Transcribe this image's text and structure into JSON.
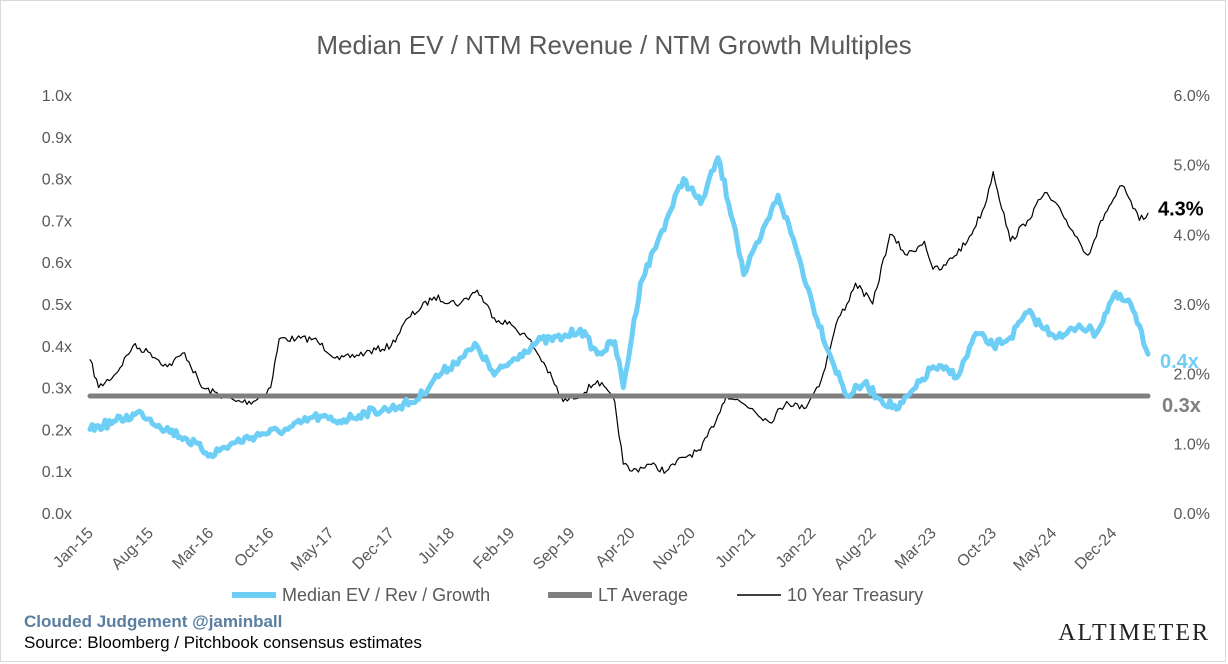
{
  "chart_data": {
    "type": "line",
    "title": "Median EV / NTM Revenue / NTM Growth Multiples",
    "x_tick_labels": [
      "Jan-15",
      "Aug-15",
      "Mar-16",
      "Oct-16",
      "May-17",
      "Dec-17",
      "Jul-18",
      "Feb-19",
      "Sep-19",
      "Apr-20",
      "Nov-20",
      "Jun-21",
      "Jan-22",
      "Aug-22",
      "Mar-23",
      "Oct-23",
      "May-24",
      "Dec-24"
    ],
    "y_left": {
      "ticks": [
        "0.0x",
        "0.1x",
        "0.2x",
        "0.3x",
        "0.4x",
        "0.5x",
        "0.6x",
        "0.7x",
        "0.8x",
        "0.9x",
        "1.0x"
      ],
      "range": [
        0,
        1.0
      ]
    },
    "y_right": {
      "ticks": [
        "0.0%",
        "1.0%",
        "2.0%",
        "3.0%",
        "4.0%",
        "5.0%",
        "6.0%"
      ],
      "range": [
        0,
        6.0
      ]
    },
    "series": [
      {
        "name": "Median EV / Rev / Growth",
        "axis": "left",
        "color": "#6ecff6",
        "style": "thick",
        "x": [
          "Jan-15",
          "Apr-15",
          "Jul-15",
          "Sep-15",
          "Dec-15",
          "Mar-16",
          "Jun-16",
          "Sep-16",
          "Dec-16",
          "Mar-17",
          "Jun-17",
          "Sep-17",
          "Dec-17",
          "Mar-18",
          "May-18",
          "Aug-18",
          "Oct-18",
          "Dec-18",
          "Mar-19",
          "May-19",
          "Aug-19",
          "Oct-19",
          "Dec-19",
          "Feb-20",
          "Mar-20",
          "May-20",
          "Jul-20",
          "Aug-20",
          "Oct-20",
          "Dec-20",
          "Feb-21",
          "Apr-21",
          "May-21",
          "Jul-21",
          "Sep-21",
          "Nov-21",
          "Jan-22",
          "Mar-22",
          "May-22",
          "Jul-22",
          "Sep-22",
          "Nov-22",
          "Jan-23",
          "Mar-23",
          "Jun-23",
          "Aug-23",
          "Oct-23",
          "Dec-23",
          "Feb-24",
          "Apr-24",
          "Jun-24",
          "Aug-24",
          "Oct-24",
          "Dec-24",
          "Feb-25",
          "Apr-25"
        ],
        "values": [
          0.2,
          0.22,
          0.24,
          0.21,
          0.18,
          0.14,
          0.17,
          0.19,
          0.2,
          0.23,
          0.22,
          0.24,
          0.25,
          0.27,
          0.32,
          0.37,
          0.4,
          0.33,
          0.38,
          0.41,
          0.42,
          0.44,
          0.38,
          0.41,
          0.3,
          0.55,
          0.65,
          0.7,
          0.8,
          0.74,
          0.85,
          0.68,
          0.57,
          0.66,
          0.76,
          0.64,
          0.5,
          0.38,
          0.28,
          0.31,
          0.27,
          0.25,
          0.3,
          0.35,
          0.33,
          0.43,
          0.4,
          0.42,
          0.48,
          0.44,
          0.42,
          0.45,
          0.43,
          0.52,
          0.5,
          0.38
        ]
      },
      {
        "name": "LT Average",
        "axis": "left",
        "color": "#7f7f7f",
        "style": "thick-flat",
        "x": [
          "Jan-15",
          "Apr-25"
        ],
        "values": [
          0.28,
          0.28
        ]
      },
      {
        "name": "10 Year Treasury",
        "axis": "right",
        "color": "#000000",
        "style": "thin",
        "x": [
          "Jan-15",
          "Feb-15",
          "Apr-15",
          "Jun-15",
          "Aug-15",
          "Oct-15",
          "Dec-15",
          "Feb-16",
          "Jun-16",
          "Aug-16",
          "Oct-16",
          "Nov-16",
          "Jan-17",
          "Mar-17",
          "Jun-17",
          "Sep-17",
          "Dec-17",
          "Feb-18",
          "May-18",
          "Aug-18",
          "Oct-18",
          "Dec-18",
          "Feb-19",
          "Apr-19",
          "Jun-19",
          "Aug-19",
          "Oct-19",
          "Dec-19",
          "Feb-20",
          "Mar-20",
          "Apr-20",
          "Jun-20",
          "Aug-20",
          "Oct-20",
          "Dec-20",
          "Feb-21",
          "Mar-21",
          "Jun-21",
          "Aug-21",
          "Oct-21",
          "Dec-21",
          "Feb-22",
          "Apr-22",
          "May-22",
          "Jun-22",
          "Aug-22",
          "Oct-22",
          "Dec-22",
          "Feb-23",
          "Mar-23",
          "Apr-23",
          "Jul-23",
          "Sep-23",
          "Oct-23",
          "Dec-23",
          "Feb-24",
          "Apr-24",
          "Jun-24",
          "Aug-24",
          "Sep-24",
          "Nov-24",
          "Jan-25",
          "Mar-25",
          "Apr-25"
        ],
        "values": [
          2.2,
          1.8,
          2.0,
          2.4,
          2.3,
          2.1,
          2.3,
          1.8,
          1.6,
          1.6,
          1.8,
          2.5,
          2.5,
          2.5,
          2.2,
          2.3,
          2.4,
          2.8,
          3.1,
          3.0,
          3.2,
          2.8,
          2.7,
          2.5,
          2.1,
          1.6,
          1.7,
          1.9,
          1.6,
          0.7,
          0.6,
          0.7,
          0.6,
          0.8,
          0.9,
          1.4,
          1.7,
          1.5,
          1.3,
          1.6,
          1.5,
          1.9,
          2.8,
          3.0,
          3.3,
          3.0,
          4.0,
          3.7,
          3.9,
          3.5,
          3.5,
          3.9,
          4.4,
          4.9,
          3.9,
          4.2,
          4.6,
          4.3,
          3.9,
          3.7,
          4.3,
          4.7,
          4.2,
          4.3
        ]
      }
    ],
    "end_labels": {
      "treasury": "4.3%",
      "median": "0.4x",
      "average": "0.3x"
    },
    "legend": {
      "position": "bottom"
    }
  },
  "footer": {
    "brand": "Clouded Judgement @jaminball",
    "source": "Source: Bloomberg / Pitchbook consensus estimates",
    "logo": "ALTIMETER"
  }
}
